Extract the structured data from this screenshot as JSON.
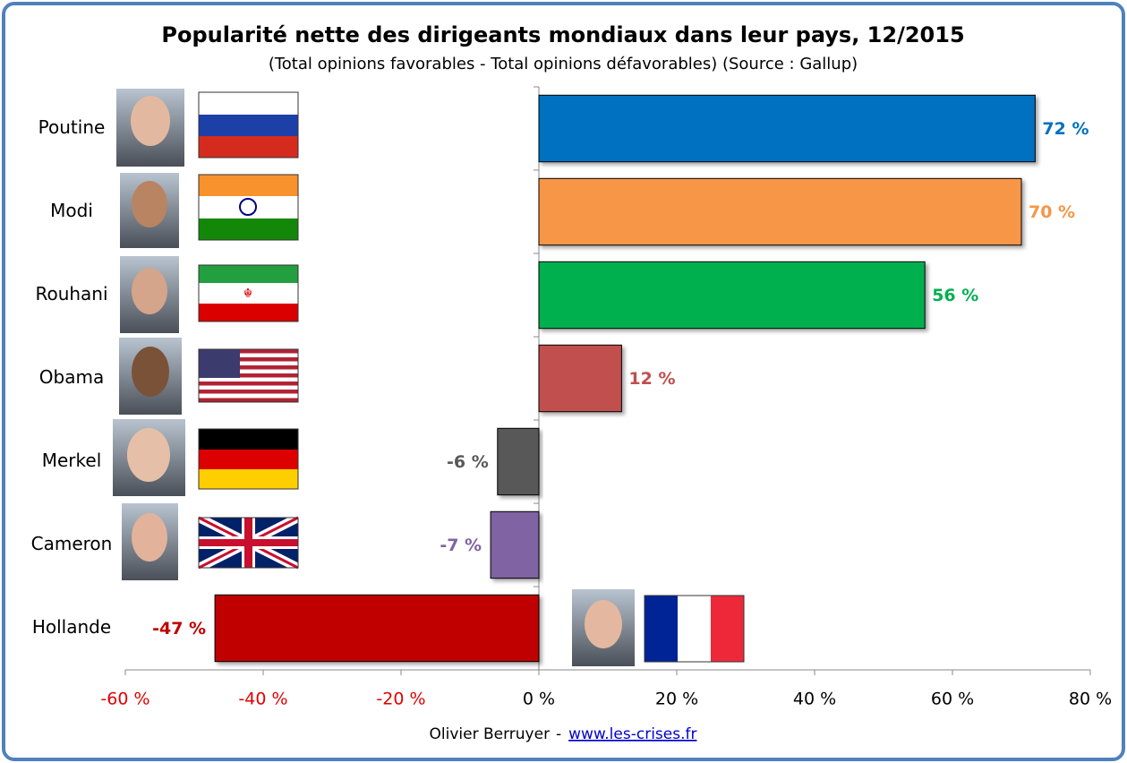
{
  "chart_data": {
    "type": "bar",
    "orientation": "horizontal",
    "title": "Popularité nette des dirigeants mondiaux dans leur pays, 12/2015",
    "subtitle": "(Total opinions favorables - Total opinions défavorables) (Source : Gallup)",
    "categories": [
      "Poutine",
      "Modi",
      "Rouhani",
      "Obama",
      "Merkel",
      "Cameron",
      "Hollande"
    ],
    "values": [
      72,
      70,
      56,
      12,
      -6,
      -7,
      -47
    ],
    "value_labels": [
      "72 %",
      "70 %",
      "56 %",
      "12 %",
      "-6 %",
      "-7 %",
      "-47 %"
    ],
    "colors": [
      "#0070c0",
      "#f79646",
      "#00b050",
      "#c0504d",
      "#595959",
      "#8064a2",
      "#c00000"
    ],
    "xlim": [
      -60,
      80
    ],
    "xticks": [
      {
        "value": -60,
        "label": "-60 %"
      },
      {
        "value": -40,
        "label": "-40 %"
      },
      {
        "value": -20,
        "label": "-20 %"
      },
      {
        "value": 0,
        "label": "0 %"
      },
      {
        "value": 20,
        "label": "20 %"
      },
      {
        "value": 40,
        "label": "40 %"
      },
      {
        "value": 60,
        "label": "60 %"
      },
      {
        "value": 80,
        "label": "80 %"
      }
    ],
    "grid": false,
    "footer": {
      "author": "Olivier Berruyer",
      "separator": "-",
      "link": "www.les-crises.fr"
    }
  }
}
